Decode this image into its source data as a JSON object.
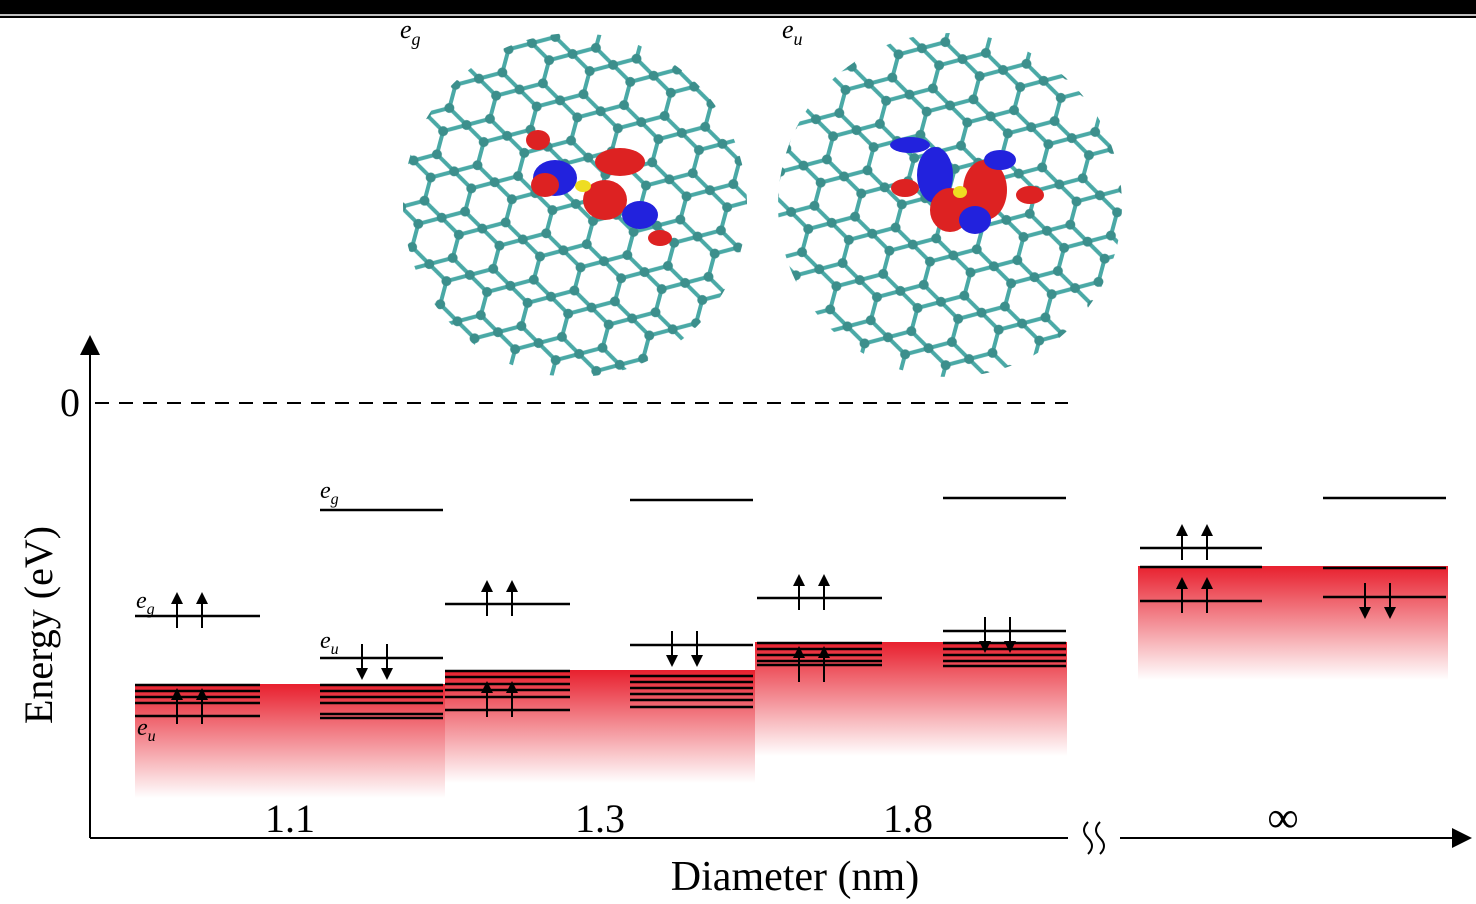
{
  "orbitals": [
    {
      "symbol": "e",
      "subscript": "g"
    },
    {
      "symbol": "e",
      "subscript": "u"
    }
  ],
  "axis": {
    "zero_label": "0",
    "y_label": "Energy (eV)",
    "x_label": "Diameter (nm)"
  },
  "diameters": [
    "1.1",
    "1.3",
    "1.8",
    "∞"
  ]
}
